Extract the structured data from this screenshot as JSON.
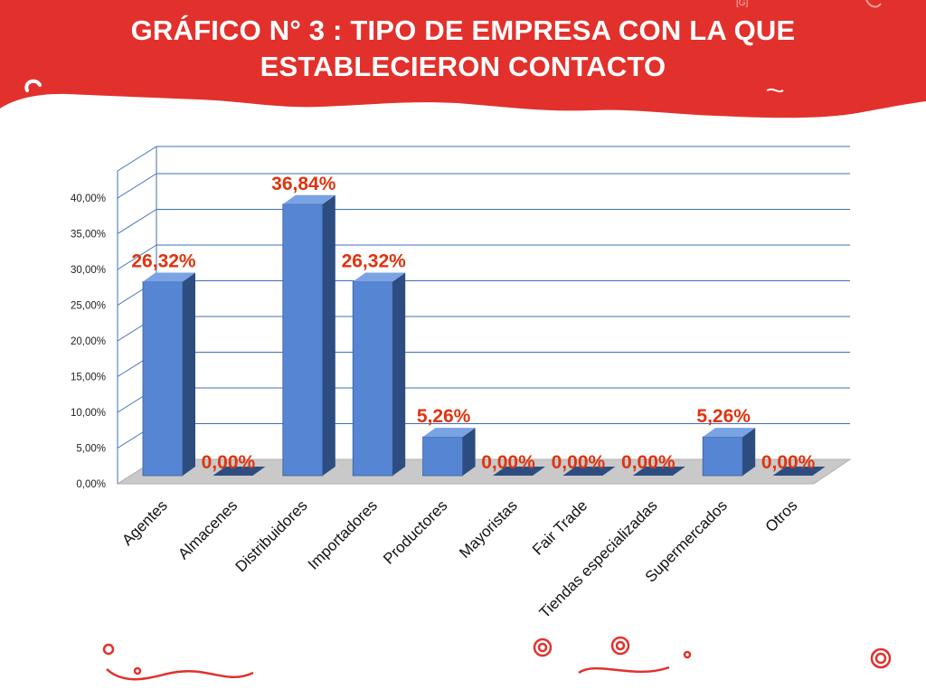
{
  "slide": {
    "title_line1": "GRÁFICO N° 3 : TIPO DE EMPRESA CON LA QUE",
    "title_line2": "ESTABLECIERON CONTACTO",
    "corner_mark": "[G]",
    "colors": {
      "banner": "#e2312c",
      "bar_front": "#5585d3",
      "bar_side": "#2d4d80",
      "bar_top": "#7aa3e4",
      "data_label": "#e0330f",
      "grid": "#3f6fb8",
      "floor": "#c9c9c9"
    }
  },
  "chart_data": {
    "type": "bar",
    "title": "GRÁFICO N° 3 : TIPO DE EMPRESA CON LA QUE ESTABLECIERON CONTACTO",
    "categories": [
      "Agentes",
      "Almacenes",
      "Distribuidores",
      "Importadores",
      "Productores",
      "Mayoristas",
      "Fair Trade",
      "Tiendas especializadas",
      "Supermercados",
      "Otros"
    ],
    "values": [
      26.32,
      0.0,
      36.84,
      26.32,
      5.26,
      0.0,
      0.0,
      0.0,
      5.26,
      0.0
    ],
    "data_labels": [
      "26,32%",
      "0,00%",
      "36,84%",
      "26,32%",
      "5,26%",
      "0,00%",
      "0,00%",
      "0,00%",
      "5,26%",
      "0,00%"
    ],
    "y_ticks": [
      0,
      5,
      10,
      15,
      20,
      25,
      30,
      35,
      40
    ],
    "y_tick_labels": [
      "0,00%",
      "5,00%",
      "10,00%",
      "15,00%",
      "20,00%",
      "25,00%",
      "30,00%",
      "35,00%",
      "40,00%"
    ],
    "ylim": [
      0,
      40
    ],
    "grid": true,
    "xlabel": "",
    "ylabel": ""
  }
}
